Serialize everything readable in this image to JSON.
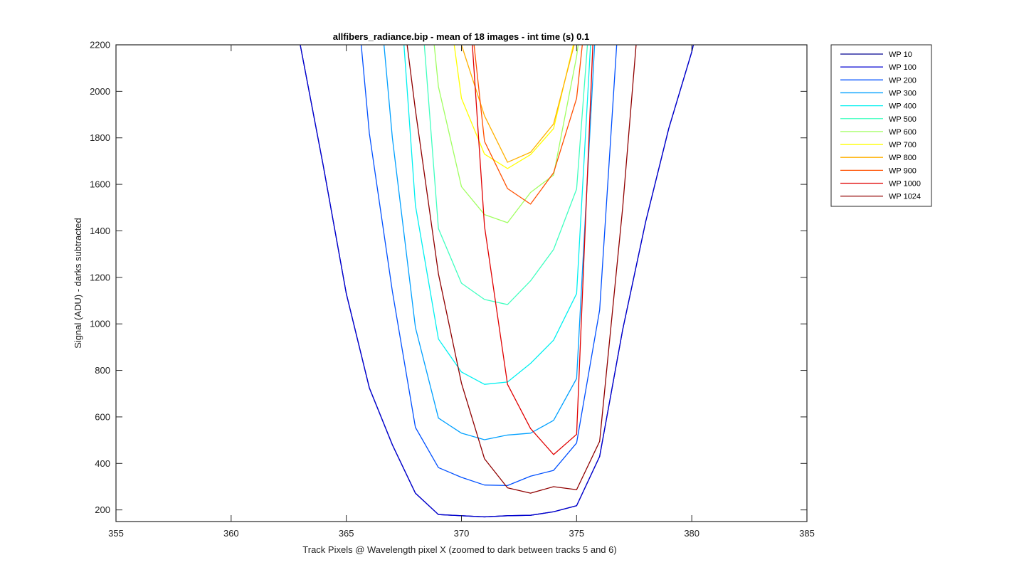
{
  "chart_data": {
    "type": "line",
    "title": "allfibers_radiance.bip - mean of 18 images - int time (s) 0.1",
    "xlabel": "Track Pixels @ Wavelength pixel X  (zoomed to dark between tracks 5 and 6)",
    "ylabel": "Signal (ADU) - darks subtracted",
    "xlim": [
      355,
      385
    ],
    "ylim": [
      150,
      2200
    ],
    "xticks": [
      "355",
      "360",
      "365",
      "370",
      "375",
      "380",
      "385"
    ],
    "yticks": [
      "200",
      "400",
      "600",
      "800",
      "1000",
      "1200",
      "1400",
      "1600",
      "1800",
      "2000",
      "2200"
    ],
    "grid": false,
    "legend_position": "outside-top-right",
    "series": [
      {
        "name": "WP 10",
        "color": "#00008F",
        "x": [
          362,
          363,
          364,
          365,
          366,
          367,
          368,
          369,
          370,
          371,
          372,
          373,
          374,
          375,
          376,
          377,
          378,
          379,
          380,
          381
        ],
        "y": [
          2600,
          2200,
          1680,
          1130,
          725,
          480,
          272,
          180,
          175,
          170,
          175,
          177,
          192,
          218,
          430,
          975,
          1440,
          1840,
          2170,
          2600
        ]
      },
      {
        "name": "WP 100",
        "color": "#0000D0",
        "x": [
          362,
          363,
          364,
          365,
          366,
          367,
          368,
          369,
          370,
          371,
          372,
          373,
          374,
          375,
          376,
          377,
          378,
          379,
          380,
          381
        ],
        "y": [
          2600,
          2200,
          1680,
          1130,
          725,
          480,
          272,
          180,
          175,
          170,
          175,
          177,
          192,
          218,
          430,
          975,
          1440,
          1840,
          2170,
          2600
        ]
      },
      {
        "name": "WP 200",
        "color": "#0050FF",
        "x": [
          365,
          366,
          367,
          368,
          369,
          370,
          371,
          372,
          373,
          374,
          375,
          376,
          377
        ],
        "y": [
          2900,
          1820,
          1140,
          555,
          382,
          340,
          307,
          305,
          345,
          370,
          488,
          1060,
          2600
        ]
      },
      {
        "name": "WP 300",
        "color": "#00A0FF",
        "x": [
          366,
          367,
          368,
          369,
          370,
          371,
          372,
          373,
          374,
          375,
          376
        ],
        "y": [
          2900,
          1800,
          985,
          595,
          530,
          502,
          522,
          530,
          585,
          765,
          2600
        ]
      },
      {
        "name": "WP 400",
        "color": "#00F0F0",
        "x": [
          367,
          368,
          369,
          370,
          371,
          372,
          373,
          374,
          375,
          376
        ],
        "y": [
          2900,
          1510,
          935,
          793,
          740,
          750,
          830,
          930,
          1130,
          2900
        ]
      },
      {
        "name": "WP 500",
        "color": "#40FFC0",
        "x": [
          368,
          369,
          370,
          371,
          372,
          373,
          374,
          375,
          376
        ],
        "y": [
          2700,
          1410,
          1175,
          1105,
          1083,
          1185,
          1320,
          1580,
          2900
        ]
      },
      {
        "name": "WP 600",
        "color": "#A0FF60",
        "x": [
          368,
          369,
          370,
          371,
          372,
          373,
          374,
          375,
          376
        ],
        "y": [
          3000,
          2020,
          1590,
          1470,
          1435,
          1565,
          1640,
          2150,
          2900
        ]
      },
      {
        "name": "WP 700",
        "color": "#FFFF00",
        "x": [
          369,
          370,
          371,
          372,
          373,
          374,
          375,
          376
        ],
        "y": [
          2700,
          1970,
          1730,
          1668,
          1728,
          1840,
          2260,
          2900
        ]
      },
      {
        "name": "WP 800",
        "color": "#FFB000",
        "x": [
          369,
          370,
          371,
          372,
          373,
          374,
          375,
          376
        ],
        "y": [
          2800,
          2200,
          1895,
          1695,
          1738,
          1860,
          2240,
          2900
        ]
      },
      {
        "name": "WP 900",
        "color": "#FF5000",
        "x": [
          370,
          371,
          372,
          373,
          374,
          375,
          376
        ],
        "y": [
          2700,
          1785,
          1582,
          1515,
          1650,
          1970,
          2900
        ]
      },
      {
        "name": "WP 1000",
        "color": "#E00000",
        "x": [
          370,
          371,
          372,
          373,
          374,
          375,
          376
        ],
        "y": [
          2900,
          1420,
          740,
          550,
          438,
          525,
          2900
        ]
      },
      {
        "name": "WP 1024",
        "color": "#900000",
        "x": [
          367,
          368,
          369,
          370,
          371,
          372,
          373,
          374,
          375,
          376,
          377,
          378
        ],
        "y": [
          2700,
          1920,
          1215,
          745,
          420,
          295,
          272,
          300,
          287,
          495,
          1500,
          2700
        ]
      }
    ]
  }
}
